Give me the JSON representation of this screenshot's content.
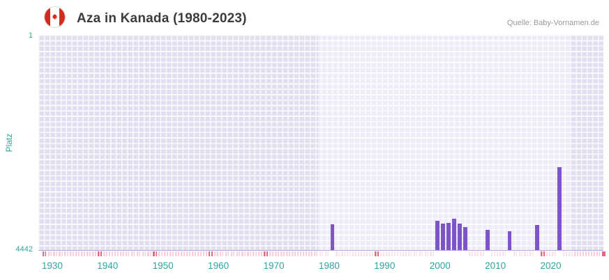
{
  "header": {
    "title": "Aza in Kanada (1980-2023)",
    "source": "Quelle: Baby-Vornamen.de"
  },
  "chart_data": {
    "type": "bar",
    "title": "Aza in Kanada (1980-2023)",
    "xlabel": "",
    "ylabel": "Platz",
    "y_axis": {
      "min": 1,
      "max": 4442,
      "inverted": true,
      "top_label": "1",
      "bottom_label": "4442"
    },
    "x_axis": {
      "range": [
        1927.5,
        2029.5
      ],
      "tick_labels": [
        "1930",
        "1940",
        "1950",
        "1960",
        "1970",
        "1980",
        "1990",
        "2000",
        "2010",
        "2020"
      ]
    },
    "highlight_period": [
      1978,
      2023.5
    ],
    "grid": true,
    "legend": "none",
    "series": [
      {
        "name": "Platz",
        "points": [
          {
            "year": 1980,
            "rank": 3900
          },
          {
            "year": 1999,
            "rank": 3830
          },
          {
            "year": 2000,
            "rank": 3880
          },
          {
            "year": 2001,
            "rank": 3870
          },
          {
            "year": 2002,
            "rank": 3780
          },
          {
            "year": 2003,
            "rank": 3880
          },
          {
            "year": 2004,
            "rank": 3950
          },
          {
            "year": 2008,
            "rank": 4010
          },
          {
            "year": 2012,
            "rank": 4040
          },
          {
            "year": 2017,
            "rank": 3910
          },
          {
            "year": 2021,
            "rank": 2720
          }
        ]
      }
    ],
    "no_data_years": {
      "dark": [
        1928,
        1938,
        1948,
        1958,
        1968,
        1988,
        2018,
        2029
      ]
    },
    "colors": {
      "bar": "#7D55C7",
      "plot_bg": "#E3DEEF",
      "plot_bg_highlight": "#EDEBF8",
      "grid_line": "#FFFFFF",
      "axis_text": "#2FA49F",
      "title_text": "#3C3C3C",
      "source_text": "#9A9A9A",
      "baseline": "#B7A8DC",
      "no_data_light": "#F5D0DF",
      "no_data_light_highlight": "#FAE4EE",
      "no_data_dark": "#E5697E",
      "flag_red": "#D52B1E"
    }
  }
}
